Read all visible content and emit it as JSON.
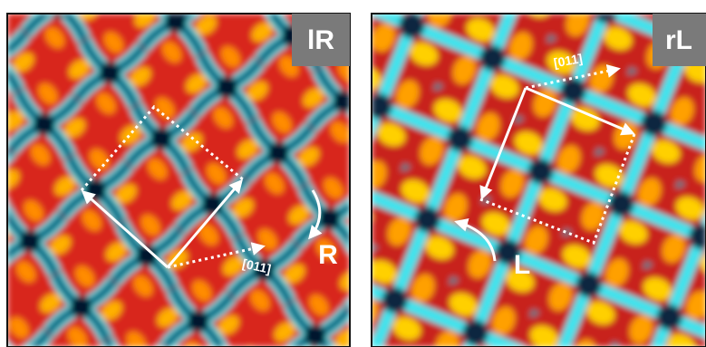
{
  "panels": [
    {
      "label": "lR",
      "direction": "[011]",
      "handedness": "R"
    },
    {
      "label": "rL",
      "direction": "[011]",
      "handedness": "L"
    }
  ]
}
